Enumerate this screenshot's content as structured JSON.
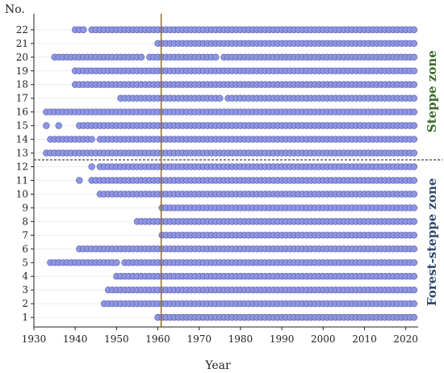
{
  "chart_data": {
    "type": "scatter",
    "title": "",
    "xlabel": "Year",
    "ylabel": "No.",
    "xlim": [
      1930,
      2023
    ],
    "ylim": [
      0.3,
      22.7
    ],
    "x_ticks": [
      1930,
      1940,
      1950,
      1960,
      1970,
      1980,
      1990,
      2000,
      2010,
      2020
    ],
    "y_ticks": [
      1,
      2,
      3,
      4,
      5,
      6,
      7,
      8,
      9,
      10,
      11,
      12,
      13,
      14,
      15,
      16,
      17,
      18,
      19,
      20,
      21,
      22
    ],
    "marker_color": "#8d96e2",
    "marker_edge_color": "#5a5aa8",
    "vertical_line": {
      "x": 1960.8,
      "color": "#8a6a1a"
    },
    "zone_divider": {
      "y": 12.5,
      "style": "dashed"
    },
    "zones": [
      {
        "label": "Steppe zone",
        "color": "#3c6b2a",
        "from_station": 13,
        "to_station": 22
      },
      {
        "label": "Forest-steppe zone",
        "color": "#2f4a6e",
        "from_station": 1,
        "to_station": 12
      }
    ],
    "stations": [
      {
        "no": 1,
        "periods": [
          [
            1960,
            2022
          ]
        ]
      },
      {
        "no": 2,
        "periods": [
          [
            1947,
            2022
          ]
        ]
      },
      {
        "no": 3,
        "periods": [
          [
            1948,
            2022
          ]
        ]
      },
      {
        "no": 4,
        "periods": [
          [
            1950,
            2022
          ]
        ]
      },
      {
        "no": 5,
        "periods": [
          [
            1934,
            1950
          ],
          [
            1952,
            2022
          ]
        ]
      },
      {
        "no": 6,
        "periods": [
          [
            1941,
            2022
          ]
        ]
      },
      {
        "no": 7,
        "periods": [
          [
            1961,
            2022
          ]
        ]
      },
      {
        "no": 8,
        "periods": [
          [
            1955,
            2022
          ]
        ]
      },
      {
        "no": 9,
        "periods": [
          [
            1961,
            2022
          ]
        ]
      },
      {
        "no": 10,
        "periods": [
          [
            1946,
            2022
          ]
        ]
      },
      {
        "no": 11,
        "periods": [
          [
            1941,
            1941
          ],
          [
            1944,
            2022
          ]
        ]
      },
      {
        "no": 12,
        "periods": [
          [
            1944,
            1944
          ],
          [
            1946,
            2022
          ]
        ]
      },
      {
        "no": 13,
        "periods": [
          [
            1933,
            2022
          ]
        ]
      },
      {
        "no": 14,
        "periods": [
          [
            1934,
            1944
          ],
          [
            1946,
            2022
          ]
        ]
      },
      {
        "no": 15,
        "periods": [
          [
            1933,
            1933
          ],
          [
            1936,
            1936
          ],
          [
            1941,
            2022
          ]
        ]
      },
      {
        "no": 16,
        "periods": [
          [
            1933,
            2022
          ]
        ]
      },
      {
        "no": 17,
        "periods": [
          [
            1951,
            1975
          ],
          [
            1977,
            2022
          ]
        ]
      },
      {
        "no": 18,
        "periods": [
          [
            1940,
            2022
          ]
        ]
      },
      {
        "no": 19,
        "periods": [
          [
            1940,
            2022
          ]
        ]
      },
      {
        "no": 20,
        "periods": [
          [
            1935,
            1956
          ],
          [
            1958,
            1974
          ],
          [
            1976,
            2022
          ]
        ]
      },
      {
        "no": 21,
        "periods": [
          [
            1960,
            2022
          ]
        ]
      },
      {
        "no": 22,
        "periods": [
          [
            1940,
            1942
          ],
          [
            1944,
            2022
          ]
        ]
      }
    ]
  }
}
